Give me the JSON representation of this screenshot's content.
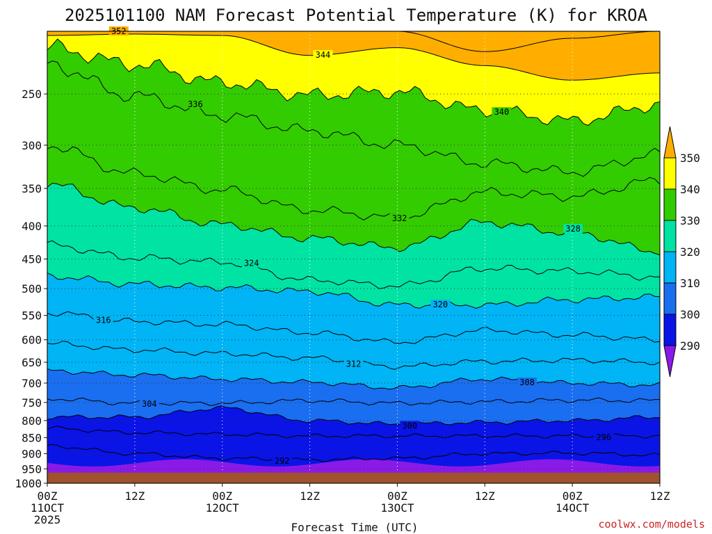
{
  "chart_data": {
    "type": "contour",
    "title": "2025101100 NAM Forecast Potential Temperature (K) for KROA",
    "xlabel": "Forecast Time (UTC)",
    "ylabel": "",
    "credit": "coolwx.com/models",
    "x_ticks": [
      {
        "hours": 0,
        "label": "00Z",
        "date": "11OCT",
        "year": "2025"
      },
      {
        "hours": 12,
        "label": "12Z",
        "date": "",
        "year": ""
      },
      {
        "hours": 24,
        "label": "00Z",
        "date": "12OCT",
        "year": ""
      },
      {
        "hours": 36,
        "label": "12Z",
        "date": "",
        "year": ""
      },
      {
        "hours": 48,
        "label": "00Z",
        "date": "13OCT",
        "year": ""
      },
      {
        "hours": 60,
        "label": "12Z",
        "date": "",
        "year": ""
      },
      {
        "hours": 72,
        "label": "00Z",
        "date": "14OCT",
        "year": ""
      },
      {
        "hours": 84,
        "label": "12Z",
        "date": "",
        "year": ""
      }
    ],
    "x_range_hours": [
      0,
      84
    ],
    "y_ticks": [
      "250",
      "300",
      "350",
      "400",
      "450",
      "500",
      "550",
      "600",
      "650",
      "700",
      "750",
      "800",
      "850",
      "900",
      "950",
      "1000"
    ],
    "y_range_hPa": [
      200,
      1000
    ],
    "ground_pressure_hPa": 963,
    "ground_color": "#a0522d",
    "colorbar": {
      "levels": [
        "350",
        "340",
        "330",
        "320",
        "310",
        "300",
        "290"
      ],
      "bins": [
        {
          "from": 350,
          "to": 360,
          "color": "#ffae00"
        },
        {
          "from": 340,
          "to": 350,
          "color": "#ffff00"
        },
        {
          "from": 330,
          "to": 340,
          "color": "#33cc00"
        },
        {
          "from": 320,
          "to": 330,
          "color": "#00e3a3"
        },
        {
          "from": 310,
          "to": 320,
          "color": "#00b4f5"
        },
        {
          "from": 300,
          "to": 310,
          "color": "#1a6ef0"
        },
        {
          "from": 290,
          "to": 300,
          "color": "#0a14e6"
        },
        {
          "from": 280,
          "to": 290,
          "color": "#8a1ae8"
        }
      ]
    },
    "contour_interval": 2,
    "series": [
      {
        "name": "pressure_hPa_at_hour_0_to_84_step_12",
        "isentropes": [
          {
            "theta": "352",
            "p": [
              200,
              200,
              200,
              200,
              200,
              215,
              205,
              200
            ]
          },
          {
            "theta": "344",
            "p": [
              203,
              202,
              203,
              218,
              212,
              226,
              238,
              232
            ]
          },
          {
            "theta": "340",
            "p": [
              212,
              225,
              240,
              251,
              248,
              265,
              275,
              260
            ]
          },
          {
            "theta": "336",
            "p": [
              225,
              252,
              270,
              285,
              300,
              320,
              330,
              310
            ]
          },
          {
            "theta": "332",
            "p": [
              300,
              332,
              352,
              378,
              388,
              355,
              360,
              340
            ]
          },
          {
            "theta": "328",
            "p": [
              345,
              375,
              398,
              418,
              432,
              395,
              410,
              438
            ]
          },
          {
            "theta": "324",
            "p": [
              428,
              448,
              455,
              485,
              495,
              465,
              470,
              480
            ]
          },
          {
            "theta": "320",
            "p": [
              478,
              492,
              498,
              505,
              530,
              530,
              520,
              515
            ]
          },
          {
            "theta": "316",
            "p": [
              545,
              562,
              568,
              585,
              605,
              580,
              590,
              600
            ]
          },
          {
            "theta": "312",
            "p": [
              608,
              622,
              630,
              640,
              660,
              648,
              645,
              650
            ]
          },
          {
            "theta": "308",
            "p": [
              670,
              680,
              690,
              698,
              712,
              690,
              700,
              705
            ]
          },
          {
            "theta": "304",
            "p": [
              740,
              752,
              752,
              745,
              752,
              748,
              744,
              745
            ]
          },
          {
            "theta": "300",
            "p": [
              790,
              790,
              765,
              800,
              810,
              805,
              800,
              790
            ]
          },
          {
            "theta": "296",
            "p": [
              822,
              835,
              840,
              845,
              845,
              845,
              845,
              845
            ]
          },
          {
            "theta": "292",
            "p": [
              875,
              900,
              915,
              920,
              915,
              900,
              898,
              905
            ]
          }
        ]
      }
    ]
  }
}
